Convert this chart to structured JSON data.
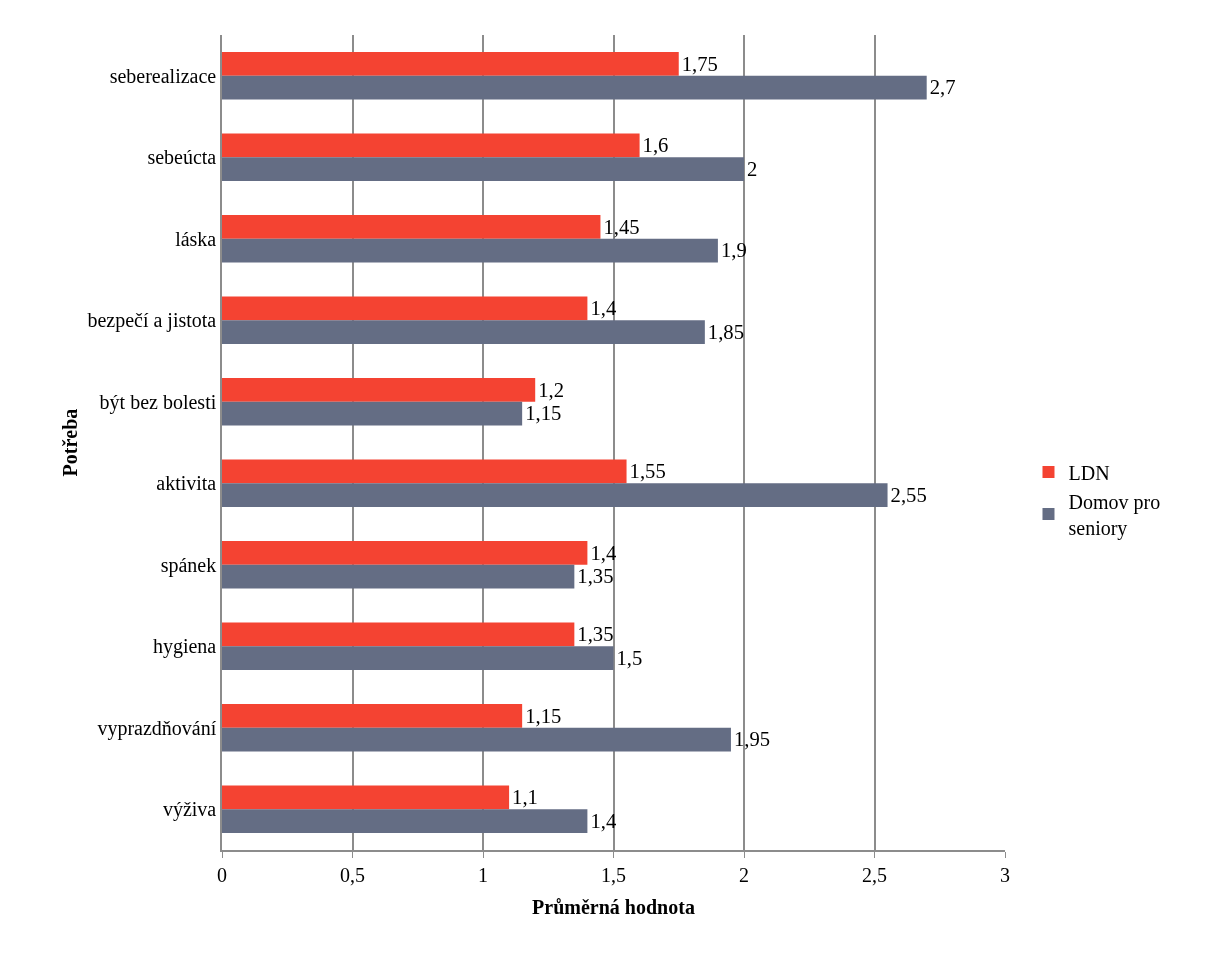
{
  "chart_data": {
    "type": "bar",
    "orientation": "horizontal",
    "xlabel": "Průměrná hodnota",
    "ylabel": "Potřeba",
    "categories": [
      "seberealizace",
      "sebeúcta",
      "láska",
      "bezpečí a jistota",
      "být bez bolesti",
      "aktivita",
      "spánek",
      "hygiena",
      "vyprazdňování",
      "výživa"
    ],
    "series": [
      {
        "name": "LDN",
        "color": "#f44332",
        "values": [
          1.75,
          1.6,
          1.45,
          1.4,
          1.2,
          1.55,
          1.4,
          1.35,
          1.15,
          1.1
        ],
        "value_labels": [
          "1,75",
          "1,6",
          "1,45",
          "1,4",
          "1,2",
          "1,55",
          "1,4",
          "1,35",
          "1,15",
          "1,1"
        ]
      },
      {
        "name": "Domov pro seniory",
        "color": "#646d84",
        "values": [
          2.7,
          2,
          1.9,
          1.85,
          1.15,
          2.55,
          1.35,
          1.5,
          1.95,
          1.4
        ],
        "value_labels": [
          "2,7",
          "2",
          "1,9",
          "1,85",
          "1,15",
          "2,55",
          "1,35",
          "1,5",
          "1,95",
          "1,4"
        ]
      }
    ],
    "xlim": [
      0,
      3
    ],
    "xticks": [
      0,
      {
        "value": 0.5,
        "label": "0,5"
      },
      1,
      {
        "value": 1.5,
        "label": "1,5"
      },
      2,
      {
        "value": 2.5,
        "label": "2,5"
      },
      3
    ],
    "grid": "x",
    "legend": "right"
  }
}
